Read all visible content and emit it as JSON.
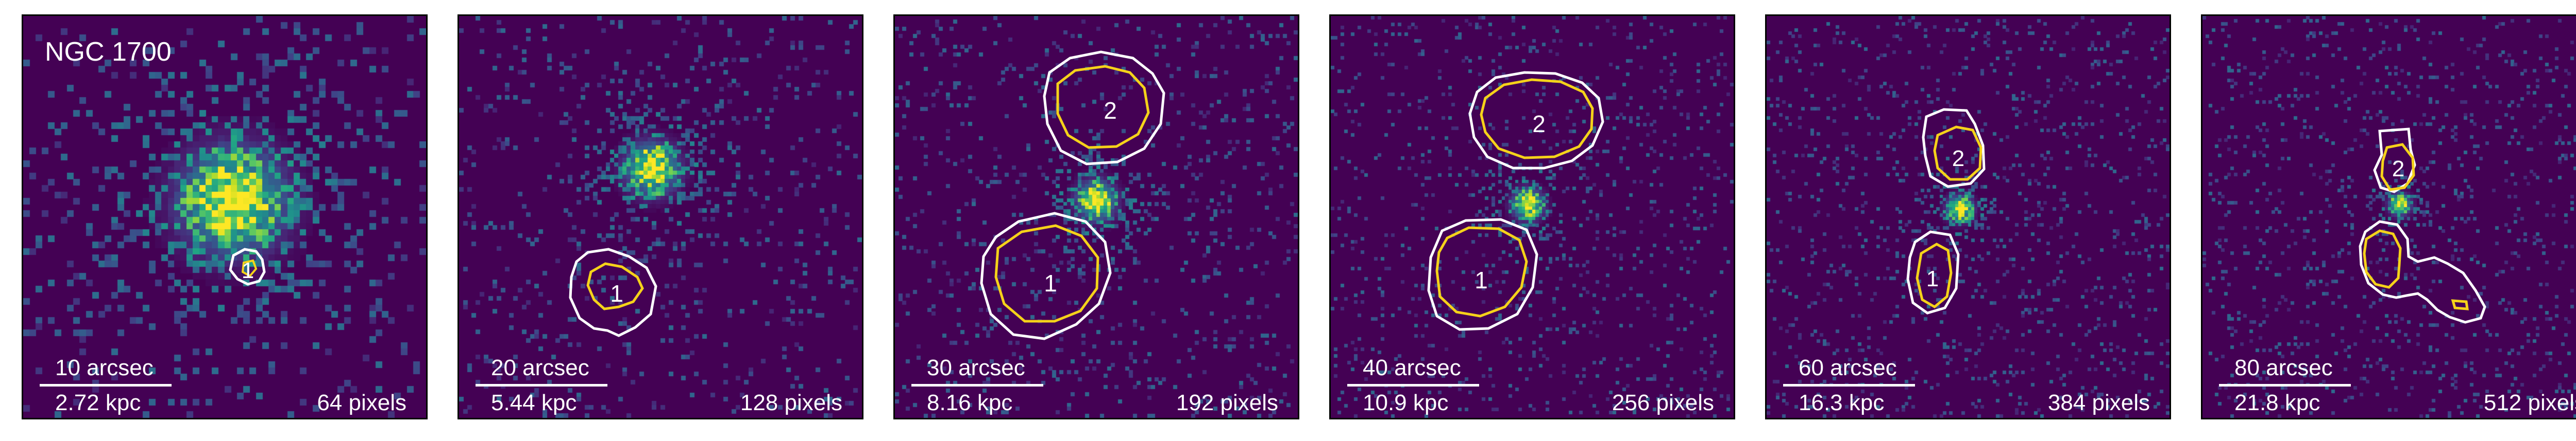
{
  "figure_title": "NGC 1700",
  "colors": {
    "background": "#440154",
    "contour_outer": "#ffffff",
    "contour_inner": "#f5d21a",
    "label": "#ffffff"
  },
  "panels": [
    {
      "id": "p1",
      "arcsec": "10 arcsec",
      "kpc": "2.72 kpc",
      "pixels": "64 pixels",
      "grid": 64,
      "regions": [
        {
          "label": "1",
          "kind": "white-outline"
        }
      ]
    },
    {
      "id": "p2",
      "arcsec": "20 arcsec",
      "kpc": "5.44 kpc",
      "pixels": "128 pixels",
      "grid": 96,
      "regions": [
        {
          "label": "1",
          "kind": "white-yellow"
        }
      ]
    },
    {
      "id": "p3",
      "arcsec": "30 arcsec",
      "kpc": "8.16 kpc",
      "pixels": "192 pixels",
      "grid": 110,
      "regions": [
        {
          "label": "1",
          "kind": "white-yellow"
        },
        {
          "label": "2",
          "kind": "white-yellow"
        }
      ]
    },
    {
      "id": "p4",
      "arcsec": "40 arcsec",
      "kpc": "10.9 kpc",
      "pixels": "256 pixels",
      "grid": 120,
      "regions": [
        {
          "label": "1",
          "kind": "white-yellow"
        },
        {
          "label": "2",
          "kind": "white-yellow"
        }
      ]
    },
    {
      "id": "p5",
      "arcsec": "60 arcsec",
      "kpc": "16.3 kpc",
      "pixels": "384 pixels",
      "grid": 128,
      "regions": [
        {
          "label": "1",
          "kind": "white-yellow"
        },
        {
          "label": "2",
          "kind": "white-yellow"
        }
      ]
    },
    {
      "id": "p6",
      "arcsec": "80 arcsec",
      "kpc": "21.8 kpc",
      "pixels": "512 pixels",
      "grid": 128,
      "regions": [
        {
          "label": "2",
          "kind": "white-yellow"
        },
        {
          "label": "",
          "kind": "white-yellow"
        }
      ]
    }
  ]
}
